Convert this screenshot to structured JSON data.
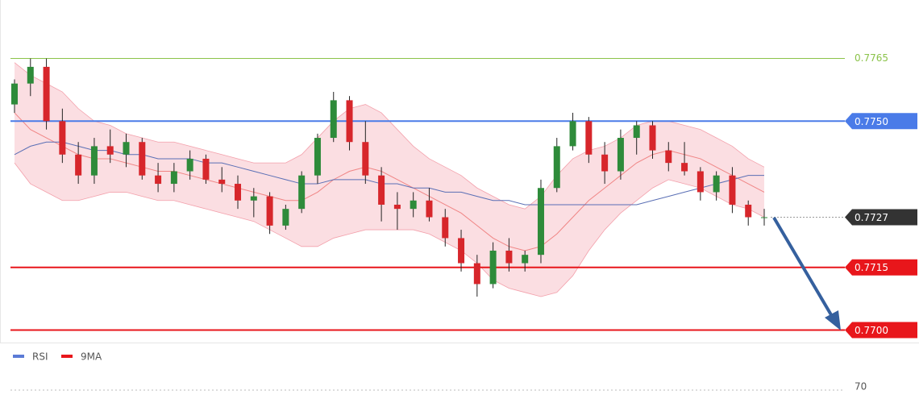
{
  "chart_data": {
    "type": "candlestick",
    "ylim": [
      0.7697,
      0.7779
    ],
    "up_color": "#2e8b3a",
    "down_color": "#d7262b",
    "open": [
      0.7754,
      0.7759,
      0.7763,
      0.775,
      0.7742,
      0.7737,
      0.7744,
      0.7742,
      0.7745,
      0.7737,
      0.7735,
      0.7738,
      0.7741,
      0.7736,
      0.7735,
      0.7731,
      0.7732,
      0.7725,
      0.7729,
      0.7737,
      0.7746,
      0.7755,
      0.7745,
      0.7737,
      0.773,
      0.7729,
      0.7731,
      0.7727,
      0.7722,
      0.7716,
      0.7711,
      0.7719,
      0.7716,
      0.7718,
      0.7734,
      0.7744,
      0.775,
      0.7742,
      0.7738,
      0.7746,
      0.7749,
      0.7743,
      0.774,
      0.7738,
      0.7733,
      0.7737,
      0.773,
      0.7727
    ],
    "high": [
      0.776,
      0.7765,
      0.7765,
      0.7753,
      0.7745,
      0.7746,
      0.7748,
      0.7747,
      0.7746,
      0.774,
      0.774,
      0.7743,
      0.7742,
      0.7739,
      0.7737,
      0.7734,
      0.7733,
      0.773,
      0.7738,
      0.7747,
      0.7757,
      0.7756,
      0.775,
      0.7739,
      0.7733,
      0.7733,
      0.7734,
      0.7729,
      0.7724,
      0.7718,
      0.7721,
      0.7722,
      0.7719,
      0.7736,
      0.7746,
      0.7752,
      0.7751,
      0.7745,
      0.7748,
      0.775,
      0.775,
      0.7745,
      0.7745,
      0.7739,
      0.7738,
      0.7739,
      0.7731,
      0.7729
    ],
    "low": [
      0.7752,
      0.7756,
      0.7748,
      0.774,
      0.7735,
      0.7735,
      0.774,
      0.7739,
      0.7736,
      0.7733,
      0.7733,
      0.7736,
      0.7735,
      0.7733,
      0.7729,
      0.7727,
      0.7723,
      0.7724,
      0.7728,
      0.7735,
      0.7745,
      0.7743,
      0.7735,
      0.7726,
      0.7724,
      0.7727,
      0.7726,
      0.772,
      0.7714,
      0.7708,
      0.771,
      0.7714,
      0.7714,
      0.7716,
      0.7733,
      0.7743,
      0.774,
      0.7735,
      0.7736,
      0.7742,
      0.7741,
      0.7738,
      0.7737,
      0.7731,
      0.7731,
      0.7728,
      0.7725,
      0.7725
    ],
    "close": [
      0.7759,
      0.7763,
      0.775,
      0.7742,
      0.7737,
      0.7744,
      0.7742,
      0.7745,
      0.7737,
      0.7735,
      0.7738,
      0.7741,
      0.7736,
      0.7735,
      0.7731,
      0.7732,
      0.7725,
      0.7729,
      0.7737,
      0.7746,
      0.7755,
      0.7745,
      0.7737,
      0.773,
      0.7729,
      0.7731,
      0.7727,
      0.7722,
      0.7716,
      0.7711,
      0.7719,
      0.7716,
      0.7718,
      0.7734,
      0.7744,
      0.775,
      0.7742,
      0.7738,
      0.7746,
      0.7749,
      0.7743,
      0.774,
      0.7738,
      0.7733,
      0.7737,
      0.773,
      0.7727,
      0.7727
    ],
    "bands": {
      "color": "#f3a0ab",
      "line_color": "#f08585",
      "upper": [
        0.7764,
        0.7761,
        0.7759,
        0.7757,
        0.7753,
        0.775,
        0.7749,
        0.7747,
        0.7746,
        0.7745,
        0.7745,
        0.7744,
        0.7743,
        0.7742,
        0.7741,
        0.774,
        0.774,
        0.774,
        0.7742,
        0.7746,
        0.775,
        0.7753,
        0.7754,
        0.7752,
        0.7748,
        0.7744,
        0.7741,
        0.7739,
        0.7737,
        0.7734,
        0.7732,
        0.773,
        0.7729,
        0.7732,
        0.7737,
        0.7741,
        0.7743,
        0.7744,
        0.7746,
        0.7749,
        0.775,
        0.775,
        0.7749,
        0.7748,
        0.7746,
        0.7744,
        0.7741,
        0.7739
      ],
      "middle": [
        0.7752,
        0.7748,
        0.7746,
        0.7744,
        0.7742,
        0.7741,
        0.7741,
        0.774,
        0.7739,
        0.7738,
        0.7738,
        0.7737,
        0.7736,
        0.7735,
        0.7734,
        0.7733,
        0.7732,
        0.7731,
        0.7731,
        0.7733,
        0.7736,
        0.7738,
        0.7739,
        0.7738,
        0.7736,
        0.7734,
        0.7732,
        0.773,
        0.7728,
        0.7725,
        0.7722,
        0.772,
        0.7719,
        0.772,
        0.7723,
        0.7727,
        0.7731,
        0.7734,
        0.7737,
        0.774,
        0.7742,
        0.7743,
        0.7742,
        0.7741,
        0.7739,
        0.7737,
        0.7735,
        0.7733
      ],
      "lower": [
        0.774,
        0.7735,
        0.7733,
        0.7731,
        0.7731,
        0.7732,
        0.7733,
        0.7733,
        0.7732,
        0.7731,
        0.7731,
        0.773,
        0.7729,
        0.7728,
        0.7727,
        0.7726,
        0.7724,
        0.7722,
        0.772,
        0.772,
        0.7722,
        0.7723,
        0.7724,
        0.7724,
        0.7724,
        0.7724,
        0.7723,
        0.7721,
        0.7719,
        0.7716,
        0.7712,
        0.771,
        0.7709,
        0.7708,
        0.7709,
        0.7713,
        0.7719,
        0.7724,
        0.7728,
        0.7731,
        0.7734,
        0.7736,
        0.7735,
        0.7734,
        0.7732,
        0.773,
        0.7729,
        0.7727
      ]
    },
    "ma": {
      "color": "#5a6fb5",
      "values": [
        0.7742,
        0.7744,
        0.7745,
        0.7745,
        0.7744,
        0.7743,
        0.7743,
        0.7742,
        0.7742,
        0.7741,
        0.7741,
        0.7741,
        0.774,
        0.774,
        0.7739,
        0.7738,
        0.7737,
        0.7736,
        0.7735,
        0.7735,
        0.7736,
        0.7736,
        0.7736,
        0.7735,
        0.7735,
        0.7734,
        0.7734,
        0.7733,
        0.7733,
        0.7732,
        0.7731,
        0.7731,
        0.773,
        0.773,
        0.773,
        0.773,
        0.773,
        0.773,
        0.773,
        0.773,
        0.7731,
        0.7732,
        0.7733,
        0.7734,
        0.7735,
        0.7736,
        0.7737,
        0.7737
      ]
    },
    "levels": [
      {
        "value": 0.7765,
        "color": "#8bc34a",
        "style": "text"
      },
      {
        "value": 0.775,
        "label": "0.7750",
        "color": "#4a7be8",
        "style": "box"
      },
      {
        "value": 0.7727,
        "color": "#333333",
        "style": "box-dotted"
      },
      {
        "value": 0.7715,
        "color": "#e8161b",
        "style": "box"
      },
      {
        "value": 0.77,
        "label": "0.7700",
        "color": "#e8161b",
        "style": "box"
      }
    ],
    "indicator": {
      "series": [
        {
          "name": "RSI",
          "color": "#5b7bd6"
        },
        {
          "name": "9MA",
          "color": "#e8161b"
        }
      ],
      "yticks": [
        70
      ]
    }
  }
}
